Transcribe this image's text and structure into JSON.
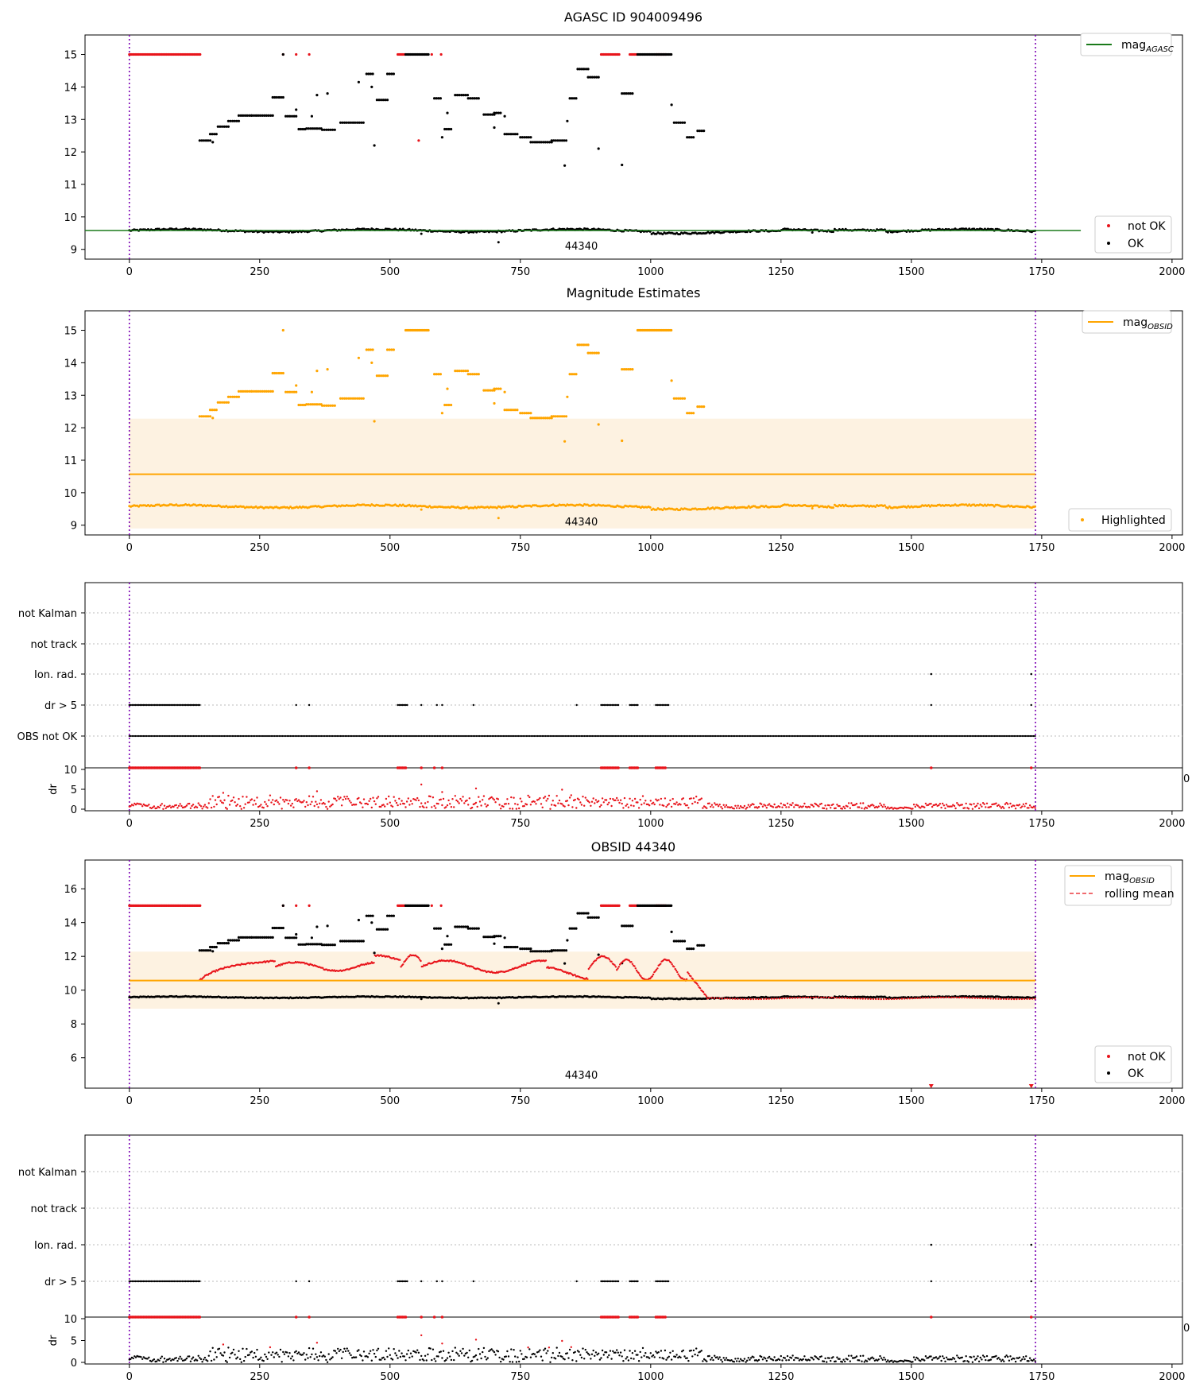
{
  "colors": {
    "ok": "#000000",
    "not_ok": "#e8141b",
    "agasc": "#1a7a1a",
    "obsid": "#ffa500",
    "band": "#fdf2e1",
    "vline": "#7b00b3",
    "grid": "#bbbbbb"
  },
  "obsid_label": "44340",
  "chart_data": [
    {
      "type": "scatter",
      "title": "AGASC ID 904009496",
      "xlim": [
        -85,
        2020
      ],
      "ylim": [
        8.7,
        15.6
      ],
      "x_ticks": [
        0,
        250,
        500,
        750,
        1000,
        1250,
        1500,
        1750,
        2000
      ],
      "y_ticks": [
        9,
        10,
        11,
        12,
        13,
        14,
        15
      ],
      "vlines": [
        0,
        1738
      ],
      "series": [
        {
          "name": "not OK",
          "values": "red scatter points"
        },
        {
          "name": "OK",
          "values": "black scatter points"
        }
      ],
      "lines": [
        {
          "name": "mag_AGASC",
          "y": 9.58,
          "x": [
            -85,
            1825
          ]
        }
      ],
      "annotation": "44340",
      "legend": [
        "mag_AGASC (top-right)",
        "not OK, OK (bottom-right)"
      ]
    },
    {
      "type": "scatter",
      "title": "Magnitude Estimates",
      "xlim": [
        -85,
        2020
      ],
      "ylim": [
        8.7,
        15.6
      ],
      "x_ticks": [
        0,
        250,
        500,
        750,
        1000,
        1250,
        1500,
        1750,
        2000
      ],
      "y_ticks": [
        9,
        10,
        11,
        12,
        13,
        14,
        15
      ],
      "vlines": [
        0,
        1738
      ],
      "band": [
        8.9,
        12.28
      ],
      "lines": [
        {
          "name": "mag_OBSID",
          "y": 10.57,
          "x": [
            0,
            1738
          ]
        }
      ],
      "series": [
        {
          "name": "Highlighted",
          "values": "orange scatter points"
        }
      ],
      "annotation": "44340",
      "legend": [
        "mag_OBSID (top-right)",
        "Highlighted (bottom-right)"
      ]
    },
    {
      "type": "scatter",
      "title": "",
      "categories": [
        "not Kalman",
        "not track",
        "Ion. rad.",
        "dr > 5",
        "OBS not OK"
      ],
      "xlim": [
        -85,
        2020
      ],
      "vlines": [
        0,
        1738
      ],
      "sub_panel": {
        "ylabel": "dr",
        "ylim": [
          0,
          10
        ],
        "y_ticks": [
          0,
          5,
          10
        ]
      }
    },
    {
      "type": "scatter",
      "title": "OBSID 44340",
      "xlim": [
        -85,
        2020
      ],
      "ylim": [
        4.2,
        17.7
      ],
      "x_ticks": [
        0,
        250,
        500,
        750,
        1000,
        1250,
        1500,
        1750,
        2000
      ],
      "y_ticks": [
        6,
        8,
        10,
        12,
        14,
        16
      ],
      "vlines": [
        0,
        1738
      ],
      "band": [
        8.9,
        12.28
      ],
      "lines": [
        {
          "name": "mag_OBSID",
          "y": 10.57,
          "x": [
            0,
            1738
          ]
        },
        {
          "name": "rolling mean",
          "style": "dashed red"
        }
      ],
      "series": [
        {
          "name": "not OK"
        },
        {
          "name": "OK"
        }
      ],
      "annotation": "44340",
      "legend": [
        "mag_OBSID, rolling mean (top-right)",
        "not OK, OK (bottom-right)"
      ]
    },
    {
      "type": "scatter",
      "title": "",
      "categories": [
        "not Kalman",
        "not track",
        "Ion. rad.",
        "dr > 5"
      ],
      "xlim": [
        -85,
        2020
      ],
      "vlines": [
        0,
        1738
      ],
      "sub_panel": {
        "ylabel": "dr",
        "ylim": [
          0,
          10
        ],
        "y_ticks": [
          0,
          5,
          10
        ]
      }
    }
  ],
  "legend_labels": {
    "not_ok": "not OK",
    "ok": "OK",
    "mag_agasc": "mag",
    "mag_agasc_sub": "AGASC",
    "mag_obsid": "mag",
    "mag_obsid_sub": "OBSID",
    "highlighted": "Highlighted",
    "rolling_mean": "rolling mean"
  },
  "flag_labels_c": [
    "not Kalman",
    "not track",
    "Ion. rad.",
    "dr > 5",
    "OBS not OK"
  ],
  "flag_labels_e": [
    "not Kalman",
    "not track",
    "Ion. rad.",
    "dr > 5"
  ],
  "dr_label": "dr",
  "clipped_tick": "0"
}
